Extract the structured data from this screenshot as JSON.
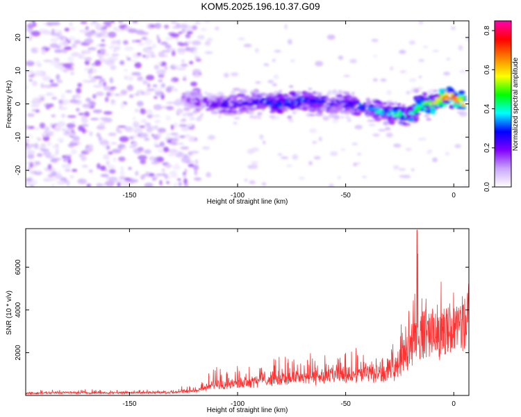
{
  "title": "KOM5.2025.196.10.37.G09",
  "chart_data": [
    {
      "type": "heatmap",
      "xlabel": "Height of straight line (km)",
      "ylabel": "Frequency (Hz)",
      "xlim": [
        -198,
        7
      ],
      "ylim": [
        -25,
        25
      ],
      "xticks": [
        -150,
        -100,
        -50,
        0
      ],
      "yticks": [
        -20,
        -10,
        0,
        10,
        20
      ],
      "colorbar": {
        "label": "Normalized spectral amplitude",
        "range": [
          0.0,
          0.85
        ],
        "ticks": [
          0.0,
          0.2,
          0.4,
          0.6,
          0.8
        ],
        "tick_labels": [
          "0.0",
          "0.2",
          "0.4",
          "0.6",
          "0.8"
        ],
        "colors": [
          "#ffffff",
          "#c9a6ff",
          "#8000ff",
          "#0000ff",
          "#00ffff",
          "#00ff00",
          "#ffff00",
          "#ff8000",
          "#ff0000",
          "#ff00b0"
        ]
      },
      "ridge": {
        "x": [
          -125,
          -110,
          -100,
          -90,
          -80,
          -70,
          -60,
          -50,
          -40,
          -35,
          -30,
          -25,
          -20,
          -15,
          -10,
          -5,
          0,
          5
        ],
        "frequency": [
          1,
          0,
          0,
          1,
          0,
          1,
          0,
          0,
          -1,
          -2,
          -3,
          -3,
          -3,
          0,
          0,
          2,
          2,
          0
        ],
        "amplitude": [
          0.15,
          0.22,
          0.25,
          0.28,
          0.3,
          0.3,
          0.28,
          0.27,
          0.3,
          0.4,
          0.35,
          0.5,
          0.4,
          0.5,
          0.55,
          0.65,
          0.7,
          0.6
        ]
      }
    },
    {
      "type": "line",
      "xlabel": "Height of straight line (km)",
      "ylabel": "SNR (10 * v/v)",
      "xlim": [
        -198,
        7
      ],
      "ylim": [
        0,
        7800
      ],
      "xticks": [
        -150,
        -100,
        -50,
        0
      ],
      "yticks": [
        2000,
        4000,
        6000
      ],
      "series": [
        {
          "color": "#ff3030",
          "x": [
            -198,
            -180,
            -160,
            -140,
            -130,
            -120,
            -115,
            -110,
            -100,
            -90,
            -80,
            -70,
            -60,
            -50,
            -40,
            -35,
            -30,
            -25,
            -20,
            -17,
            -15,
            -10,
            -5,
            0,
            5,
            7
          ],
          "baseline": [
            100,
            120,
            110,
            130,
            140,
            170,
            350,
            450,
            550,
            700,
            800,
            850,
            900,
            950,
            1000,
            1000,
            1100,
            1500,
            2400,
            2600,
            2800,
            3000,
            3200,
            3500,
            3600,
            4000
          ],
          "envelope": [
            250,
            300,
            280,
            300,
            300,
            600,
            800,
            1600,
            1300,
            1600,
            1800,
            1900,
            1800,
            2000,
            2200,
            1900,
            2400,
            3800,
            4800,
            7800,
            6000,
            5000,
            4800,
            4700,
            5200,
            5800
          ]
        }
      ]
    }
  ]
}
